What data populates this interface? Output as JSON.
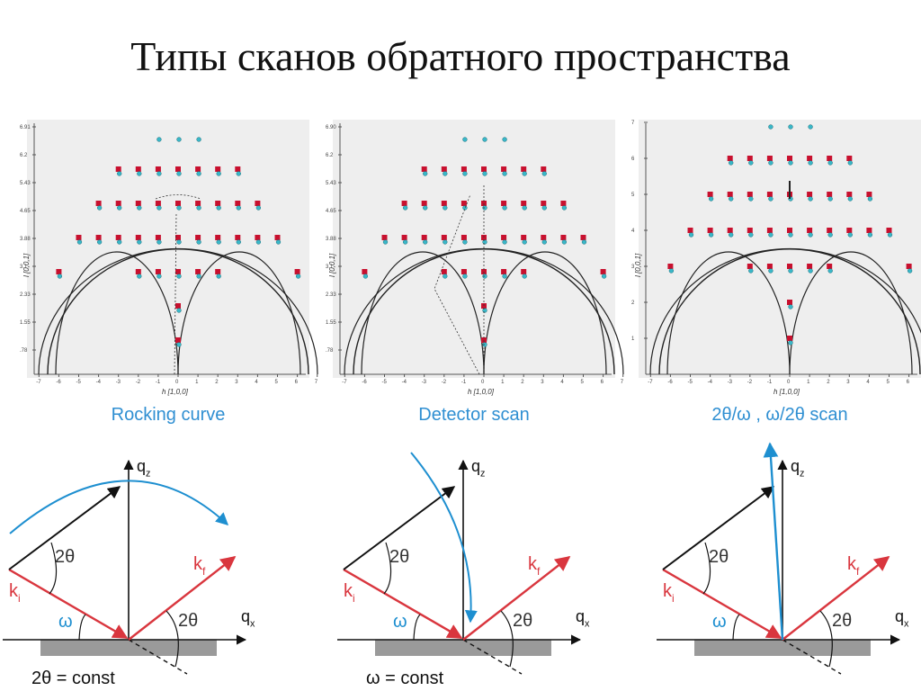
{
  "title": "Типы сканов обратного пространства",
  "colors": {
    "black": "#111111",
    "red": "#d9363e",
    "blue": "#1e8fd0",
    "cyan": "#39b7c8",
    "square": "#c8102e",
    "plotbg": "#eeeeee",
    "sample": "#9a9a9a",
    "caption": "#2f8fd2"
  },
  "panels": [
    {
      "caption": "Rocking curve",
      "ylabel": "l [0,0,1]",
      "xlabel": "h [1,0,0]",
      "yticks": [
        "6.91",
        "6.2",
        "5.43",
        "4.65",
        "3.88",
        "3.1",
        "2.33",
        "1.55",
        ".78"
      ],
      "xticks": [
        "-7",
        "-6",
        "-5",
        "-4",
        "-3",
        "-2",
        "-1",
        "0",
        "1",
        "2",
        "3",
        "4",
        "5",
        "6",
        "7"
      ],
      "scan": "rocking",
      "ki": "k",
      "ki_sub": "i",
      "kf": "k",
      "kf_sub": "f",
      "qz": "q",
      "qz_sub": "z",
      "qx": "q",
      "qx_sub": "x",
      "angle_top": "2θ",
      "angle_omega": "ω",
      "angle_right": "2θ",
      "condition": "2θ = const"
    },
    {
      "caption": "Detector scan",
      "ylabel": "l [0,0,1]",
      "xlabel": "h [1,0,0]",
      "yticks": [
        "6.90",
        "6.2",
        "5.43",
        "4.65",
        "3.88",
        "3.1",
        "2.33",
        "1.55",
        ".78"
      ],
      "xticks": [
        "-7",
        "-6",
        "-5",
        "-4",
        "-3",
        "-2",
        "-1",
        "0",
        "1",
        "2",
        "3",
        "4",
        "5",
        "6",
        "7"
      ],
      "scan": "detector",
      "ki": "k",
      "ki_sub": "i",
      "kf": "k",
      "kf_sub": "f",
      "qz": "q",
      "qz_sub": "z",
      "qx": "q",
      "qx_sub": "x",
      "angle_top": "2θ",
      "angle_omega": "ω",
      "angle_right": "2θ",
      "condition": "ω = const"
    },
    {
      "caption": "2θ/ω , ω/2θ scan",
      "ylabel": "l [0,0,1]",
      "xlabel": "h [1,0,0]",
      "yticks": [
        "7",
        "6",
        "5",
        "4",
        "3",
        "2",
        "1"
      ],
      "xticks": [
        "-7",
        "-6",
        "-5",
        "-4",
        "-3",
        "-2",
        "-1",
        "0",
        "1",
        "2",
        "3",
        "4",
        "5",
        "6",
        "7"
      ],
      "scan": "coupled",
      "ki": "k",
      "ki_sub": "i",
      "kf": "k",
      "kf_sub": "f",
      "qz": "q",
      "qz_sub": "z",
      "qx": "q",
      "qx_sub": "x",
      "angle_top": "2θ",
      "angle_omega": "ω",
      "angle_right": "2θ",
      "condition": ""
    }
  ]
}
